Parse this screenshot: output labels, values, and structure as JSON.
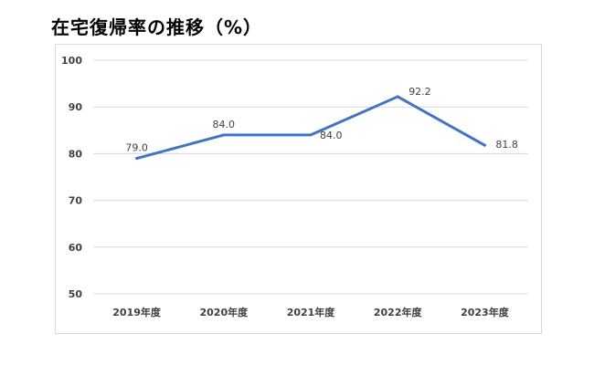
{
  "chart_data": {
    "type": "line",
    "title": "在宅復帰率の推移（%）",
    "categories": [
      "2019年度",
      "2020年度",
      "2021年度",
      "2022年度",
      "2023年度"
    ],
    "series": [
      {
        "values": [
          79.0,
          84.0,
          84.0,
          92.2,
          81.8
        ],
        "data_labels": [
          "79.0",
          "84.0",
          "84.0",
          "92.2",
          "81.8"
        ],
        "color": "#4472C4"
      }
    ],
    "yticks": [
      "50",
      "60",
      "70",
      "80",
      "90",
      "100"
    ],
    "ylim": [
      50,
      100
    ],
    "grid": true,
    "legend": "none",
    "gridline_color": "#d9d9d9"
  }
}
